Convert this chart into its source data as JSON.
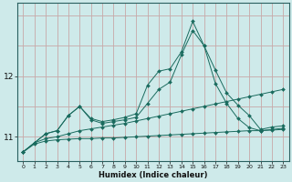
{
  "xlabel": "Humidex (Indice chaleur)",
  "background_color": "#ceeaea",
  "line_color": "#1a6b5e",
  "x": [
    0,
    1,
    2,
    3,
    4,
    5,
    6,
    7,
    8,
    9,
    10,
    11,
    12,
    13,
    14,
    15,
    16,
    17,
    18,
    19,
    20,
    21,
    22,
    23
  ],
  "line1": [
    10.75,
    10.88,
    10.93,
    10.95,
    10.96,
    10.97,
    10.97,
    10.98,
    10.98,
    10.99,
    11.0,
    11.01,
    11.02,
    11.03,
    11.04,
    11.05,
    11.06,
    11.07,
    11.08,
    11.09,
    11.1,
    11.1,
    11.11,
    11.12
  ],
  "line2": [
    10.75,
    10.9,
    10.97,
    11.0,
    11.05,
    11.1,
    11.13,
    11.16,
    11.19,
    11.22,
    11.26,
    11.3,
    11.34,
    11.38,
    11.42,
    11.46,
    11.5,
    11.54,
    11.58,
    11.62,
    11.66,
    11.7,
    11.74,
    11.78
  ],
  "line3": [
    10.75,
    10.9,
    11.05,
    11.1,
    11.35,
    11.5,
    11.28,
    11.22,
    11.25,
    11.28,
    11.32,
    11.55,
    11.78,
    11.9,
    12.35,
    12.75,
    12.5,
    11.88,
    11.55,
    11.3,
    11.15,
    11.1,
    11.12,
    11.14
  ],
  "line4": [
    10.75,
    10.9,
    11.05,
    11.1,
    11.35,
    11.5,
    11.3,
    11.25,
    11.28,
    11.32,
    11.38,
    11.85,
    12.08,
    12.12,
    12.4,
    12.9,
    12.5,
    12.1,
    11.72,
    11.52,
    11.35,
    11.12,
    11.16,
    11.18
  ],
  "yticks": [
    11,
    12
  ],
  "ylim": [
    10.6,
    13.2
  ],
  "xlim": [
    -0.5,
    23.5
  ],
  "vgrid_color": "#c8a8a8",
  "hgrid_color": "#c8a8a8"
}
